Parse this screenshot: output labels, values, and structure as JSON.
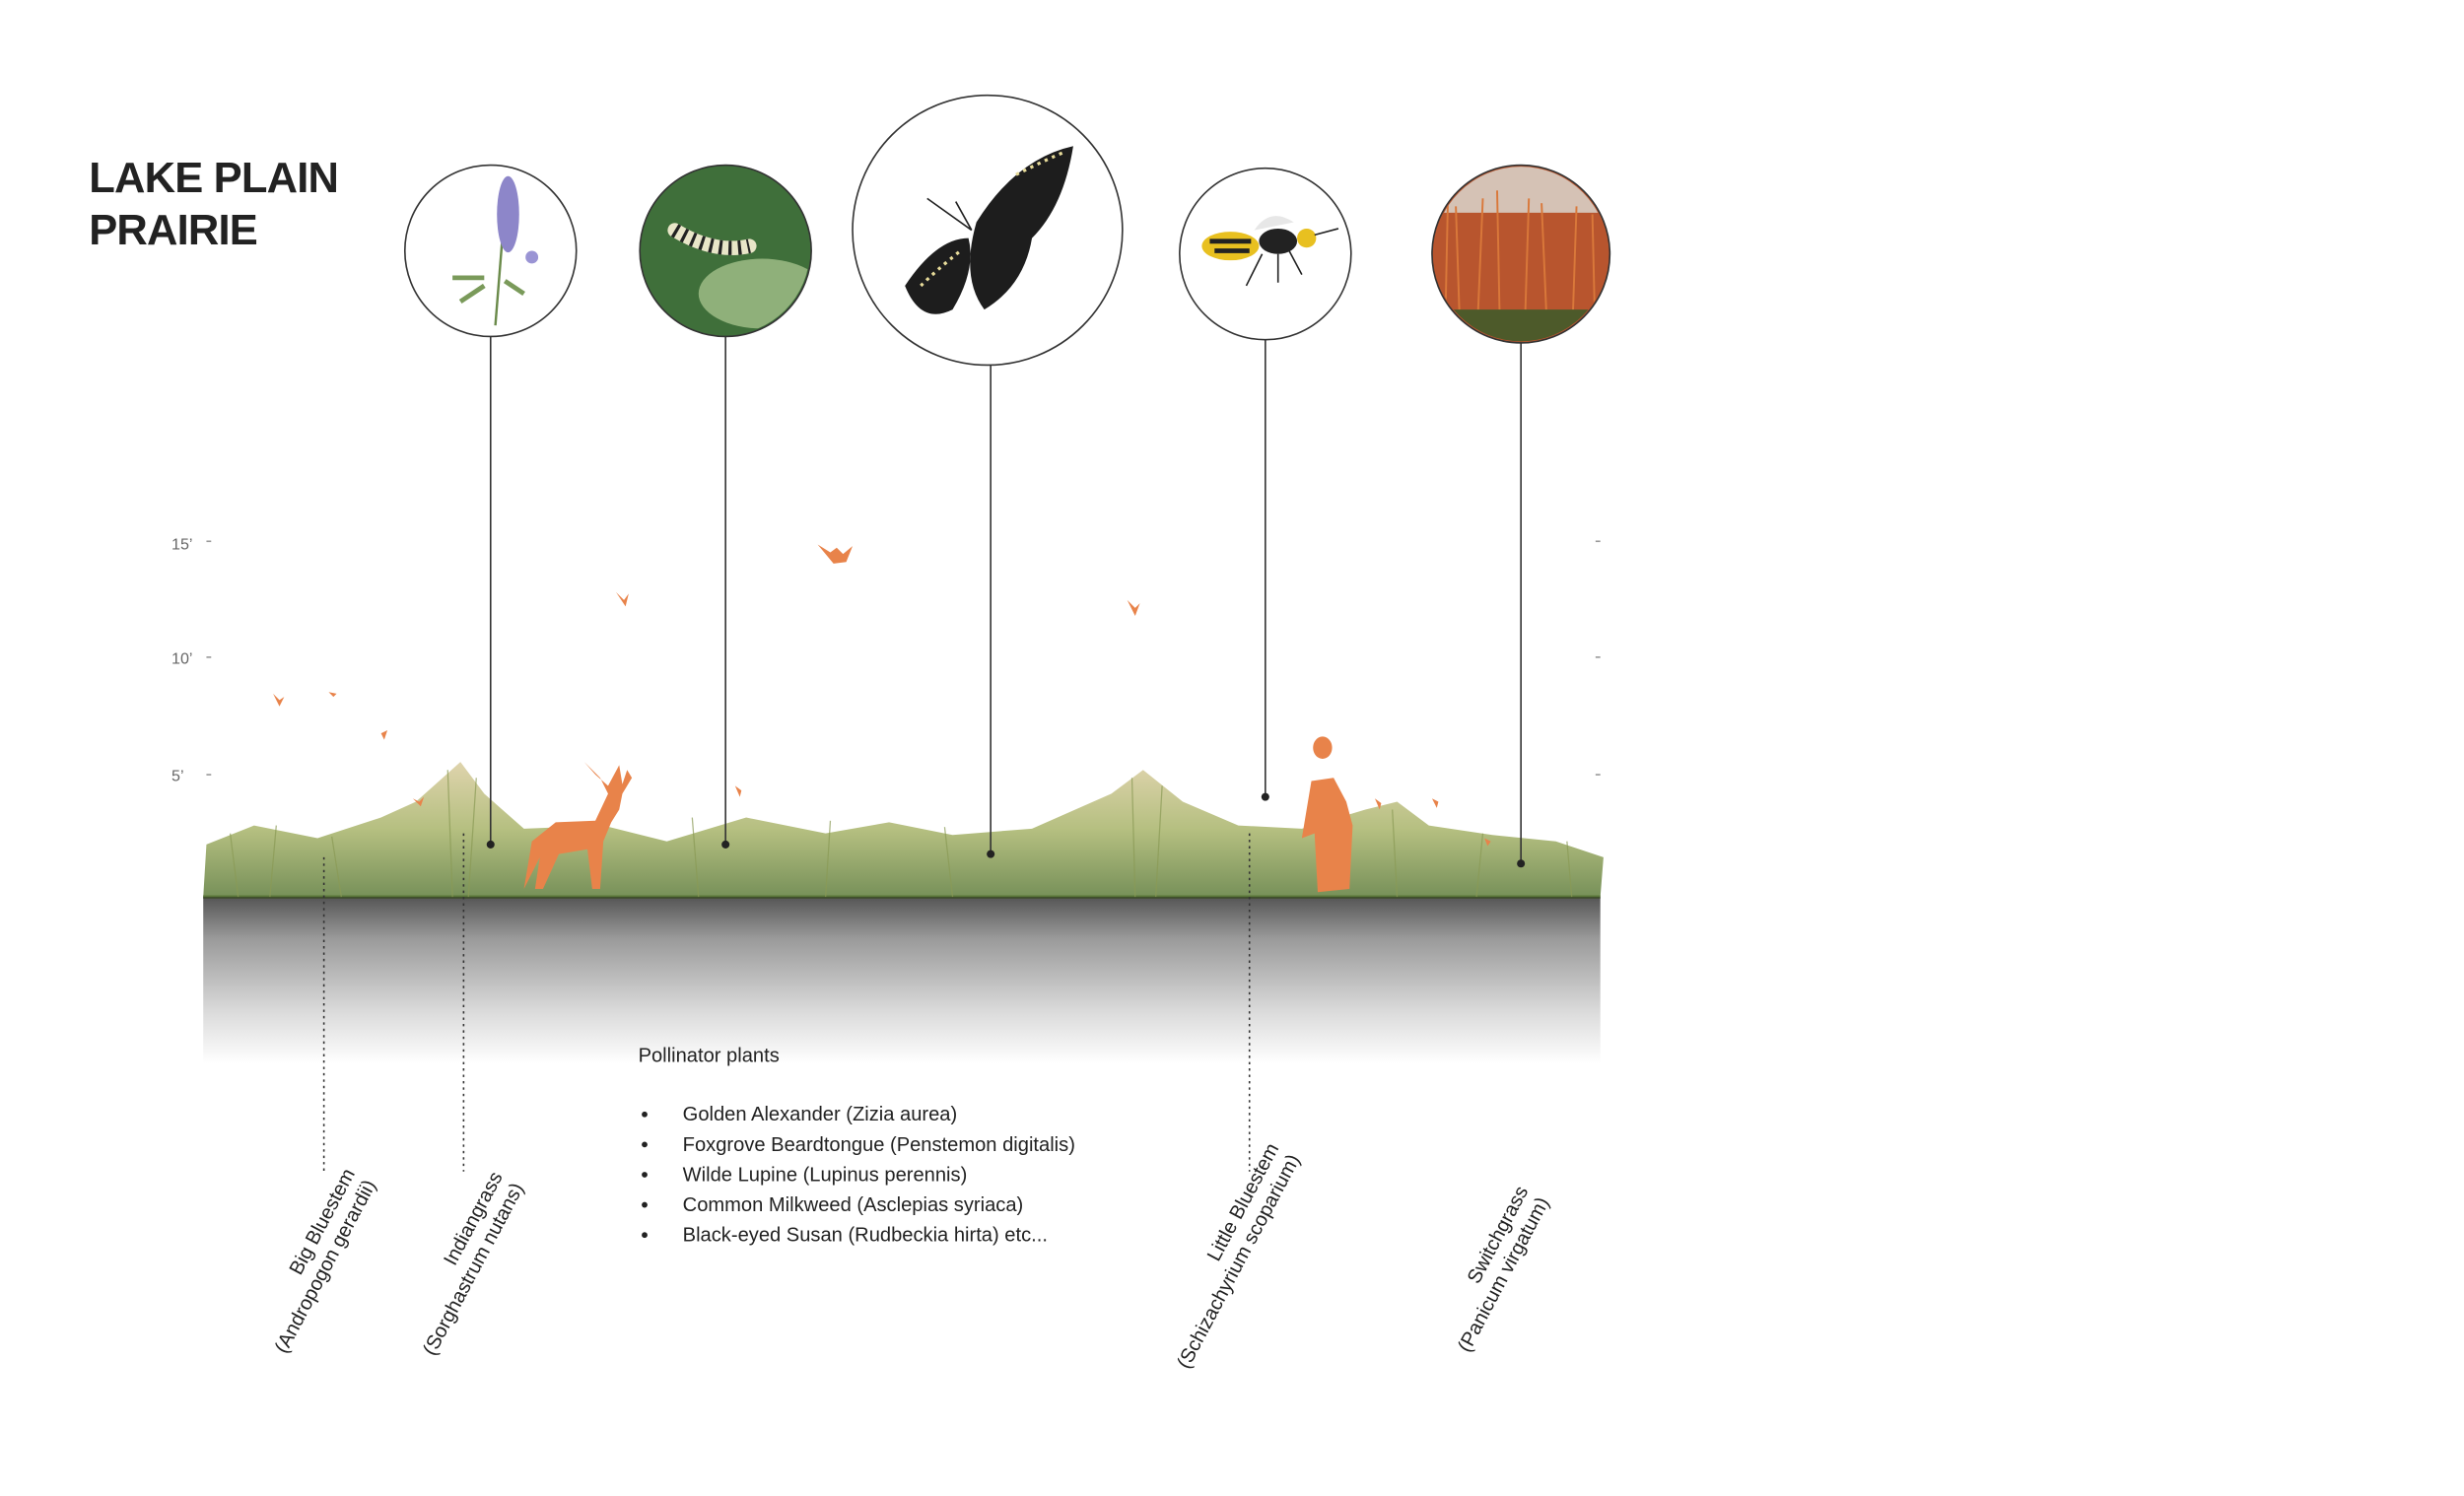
{
  "title": [
    "LAKE PLAIN",
    "PRAIRIE"
  ],
  "scale": [
    "15’",
    "10’",
    "5’"
  ],
  "pollinators": {
    "heading": "Pollinator plants",
    "items": [
      "Golden Alexander (Zizia aurea)",
      "Foxgrove Beardtongue (Penstemon digitalis)",
      "Wilde Lupine (Lupinus perennis)",
      "Common Milkweed (Asclepias syriaca)",
      "Black-eyed Susan (Rudbeckia hirta)  etc..."
    ]
  },
  "species": [
    [
      "Big Bluestem",
      "(Andropogon gerardii)"
    ],
    [
      "Indiangrass",
      "(Sorghastrum nutans)"
    ],
    [
      "Little Bluestem",
      "(Schizachyrium scoparium)"
    ],
    [
      "Switchgrass",
      "(Panicum virgatum)"
    ]
  ]
}
